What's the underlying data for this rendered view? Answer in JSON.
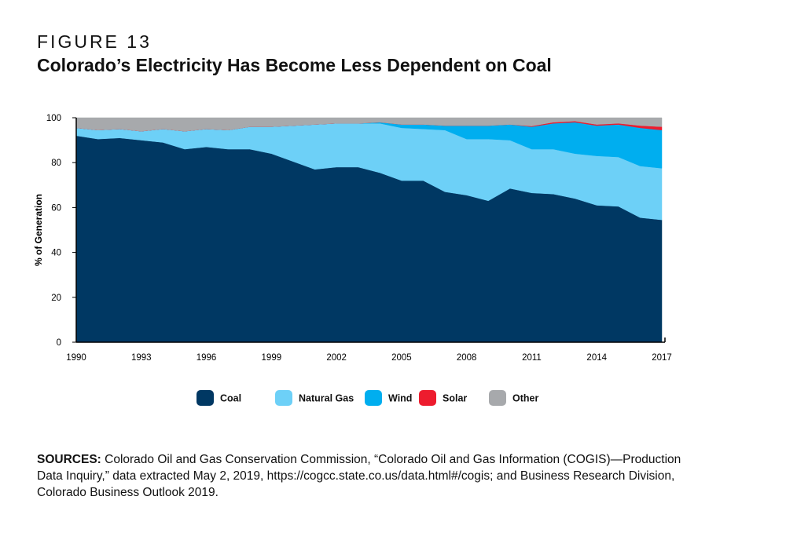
{
  "figure": {
    "label": "FIGURE 13",
    "title": "Colorado’s Electricity Has Become Less Dependent on Coal"
  },
  "sources": {
    "label": "SOURCES:",
    "text": "Colorado Oil and Gas Conservation Commission, “Colorado Oil and Gas Information (COGIS)—Production Data Inquiry,” data extracted May 2, 2019, https://cogcc.state.co.us/data.html#/cogis; and Business Research Division, Colorado Business Outlook 2019."
  },
  "chart_data": {
    "type": "area",
    "stacked": true,
    "title": "",
    "xlabel": "",
    "ylabel": "% of Generation",
    "xlim": [
      1990,
      2017
    ],
    "ylim": [
      0,
      100
    ],
    "x_ticks": [
      1990,
      1993,
      1996,
      1999,
      2002,
      2005,
      2008,
      2011,
      2014,
      2017
    ],
    "y_ticks": [
      0,
      20,
      40,
      60,
      80,
      100
    ],
    "legend_position": "bottom",
    "x": [
      1990,
      1991,
      1992,
      1993,
      1994,
      1995,
      1996,
      1997,
      1998,
      1999,
      2000,
      2001,
      2002,
      2003,
      2004,
      2005,
      2006,
      2007,
      2008,
      2009,
      2010,
      2011,
      2012,
      2013,
      2014,
      2015,
      2016,
      2017
    ],
    "series": [
      {
        "name": "Coal",
        "color": "#003863",
        "values": [
          92,
          90.5,
          91,
          90,
          89,
          86,
          87,
          86,
          86,
          84,
          80.5,
          77,
          78,
          78,
          75.5,
          72,
          72,
          67,
          65.5,
          63,
          68.5,
          66.5,
          66,
          64,
          61,
          60.5,
          55.5,
          54.5
        ]
      },
      {
        "name": "Natural Gas",
        "color": "#6dd0f7",
        "values": [
          3.5,
          4,
          4,
          4,
          6,
          8,
          8,
          8.5,
          10,
          12,
          16,
          20,
          19.5,
          19.5,
          22,
          23.5,
          23,
          27.5,
          25,
          27.5,
          21.5,
          19.5,
          20,
          20,
          22,
          22,
          23,
          23
        ]
      },
      {
        "name": "Wind",
        "color": "#00aeef",
        "values": [
          0,
          0,
          0,
          0,
          0,
          0,
          0,
          0,
          0,
          0,
          0,
          0,
          0,
          0,
          0.5,
          1.5,
          2,
          2,
          6,
          6,
          7,
          10,
          11.5,
          14,
          13.5,
          14.5,
          17,
          17
        ]
      },
      {
        "name": "Solar",
        "color": "#ed1c2e",
        "values": [
          0,
          0,
          0,
          0,
          0,
          0,
          0,
          0,
          0,
          0,
          0,
          0,
          0,
          0,
          0,
          0,
          0,
          0,
          0,
          0,
          0,
          0.3,
          0.5,
          0.5,
          0.5,
          0.5,
          1,
          1.5
        ]
      },
      {
        "name": "Other",
        "color": "#a7a9ac",
        "values": [
          4.5,
          5.5,
          5,
          6,
          5,
          6,
          5,
          5.5,
          4,
          4,
          3.5,
          3,
          2.5,
          2.5,
          2,
          3,
          3,
          3.5,
          3.5,
          3.5,
          3,
          3.7,
          2,
          1.5,
          3,
          2.5,
          3.5,
          4
        ]
      }
    ]
  }
}
